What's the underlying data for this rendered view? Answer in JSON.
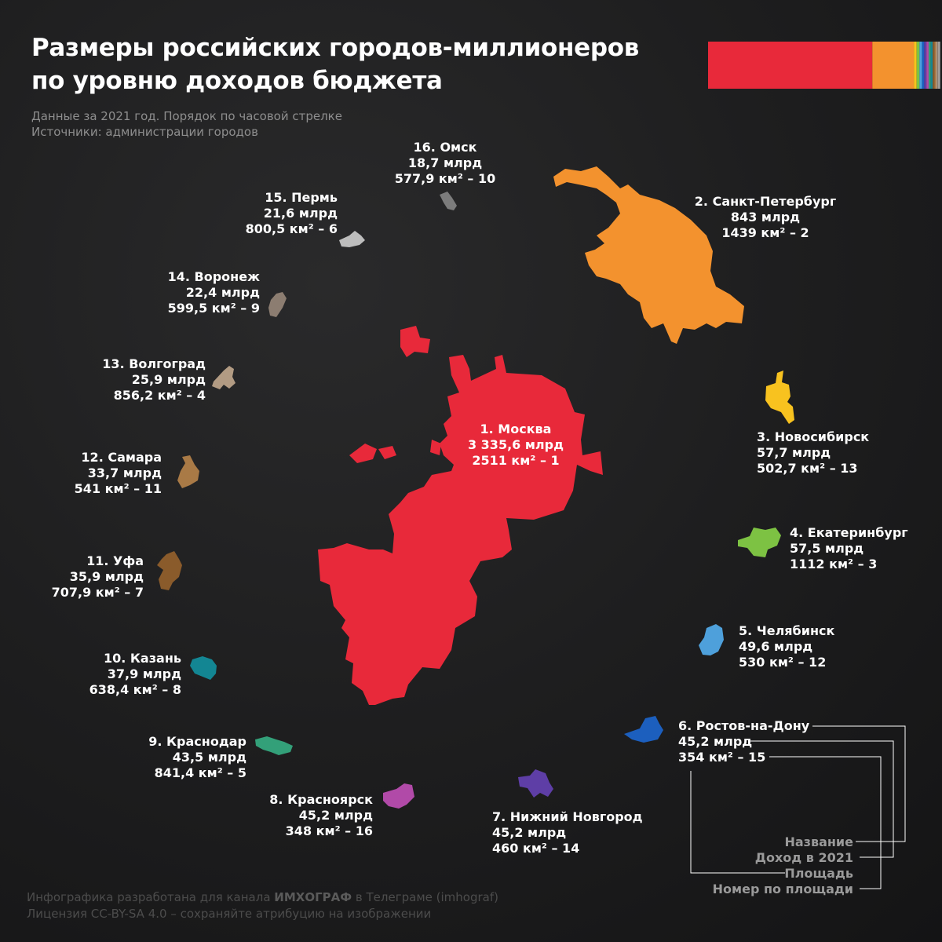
{
  "title": {
    "line1": "Размеры российских городов-миллионеров",
    "line2": "по уровню доходов бюджета"
  },
  "subtitle": {
    "line1": "Данные за 2021 год. Порядок по часовой стрелке",
    "line2": "Источники: администрации городов"
  },
  "colors": {
    "background": "#1e1e1f",
    "moscow": "#e8293a",
    "spb": "#f3922e",
    "novosibirsk": "#f8c21f",
    "ekaterinburg": "#7dc243",
    "chelyabinsk": "#4ea0db",
    "rostov": "#1c5fbe",
    "nnovgorod": "#5e3ea6",
    "krasnoyarsk": "#b14aa8",
    "krasnodar": "#33a079",
    "kazan": "#138693",
    "ufa": "#8a5b2b",
    "samara": "#a97a46",
    "volgograd": "#b29b83",
    "voronezh": "#8c7d71",
    "perm": "#bdbdbd",
    "omsk": "#7c7c7c"
  },
  "cities": [
    {
      "name": "1. Москва",
      "revenue": "3 335,6 млрд",
      "area": "2511 км² – 1",
      "revenue_bln": 3335.6,
      "area_km2": 2511,
      "area_rank": 1
    },
    {
      "name": "2. Санкт-Петербург",
      "revenue": "843 млрд",
      "area": "1439 км² – 2",
      "revenue_bln": 843,
      "area_km2": 1439,
      "area_rank": 2
    },
    {
      "name": "3. Новосибирск",
      "revenue": "57,7 млрд",
      "area": "502,7 км² – 13",
      "revenue_bln": 57.7,
      "area_km2": 502.7,
      "area_rank": 13
    },
    {
      "name": "4. Екатеринбург",
      "revenue": "57,5 млрд",
      "area": "1112 км² – 3",
      "revenue_bln": 57.5,
      "area_km2": 1112,
      "area_rank": 3
    },
    {
      "name": "5. Челябинск",
      "revenue": "49,6 млрд",
      "area": "530 км² – 12",
      "revenue_bln": 49.6,
      "area_km2": 530,
      "area_rank": 12
    },
    {
      "name": "6. Ростов-на-Дону",
      "revenue": "45,2 млрд",
      "area": "354 км² – 15",
      "revenue_bln": 45.2,
      "area_km2": 354,
      "area_rank": 15
    },
    {
      "name": "7. Нижний Новгород",
      "revenue": "45,2 млрд",
      "area": "460 км² – 14",
      "revenue_bln": 45.2,
      "area_km2": 460,
      "area_rank": 14
    },
    {
      "name": "8. Красноярск",
      "revenue": "45,2 млрд",
      "area": "348 км² – 16",
      "revenue_bln": 45.2,
      "area_km2": 348,
      "area_rank": 16
    },
    {
      "name": "9. Краснодар",
      "revenue": "43,5 млрд",
      "area": "841,4 км² – 5",
      "revenue_bln": 43.5,
      "area_km2": 841.4,
      "area_rank": 5
    },
    {
      "name": "10. Казань",
      "revenue": "37,9 млрд",
      "area": "638,4 км² – 8",
      "revenue_bln": 37.9,
      "area_km2": 638.4,
      "area_rank": 8
    },
    {
      "name": "11. Уфа",
      "revenue": "35,9 млрд",
      "area": "707,9 км² – 7",
      "revenue_bln": 35.9,
      "area_km2": 707.9,
      "area_rank": 7
    },
    {
      "name": "12. Самара",
      "revenue": "33,7 млрд",
      "area": "541 км² – 11",
      "revenue_bln": 33.7,
      "area_km2": 541,
      "area_rank": 11
    },
    {
      "name": "13. Волгоград",
      "revenue": "25,9 млрд",
      "area": "856,2 км² – 4",
      "revenue_bln": 25.9,
      "area_km2": 856.2,
      "area_rank": 4
    },
    {
      "name": "14. Воронеж",
      "revenue": "22,4 млрд",
      "area": "599,5 км² – 9",
      "revenue_bln": 22.4,
      "area_km2": 599.5,
      "area_rank": 9
    },
    {
      "name": "15. Пермь",
      "revenue": "21,6 млрд",
      "area": "800,5 км² – 6",
      "revenue_bln": 21.6,
      "area_km2": 800.5,
      "area_rank": 6
    },
    {
      "name": "16. Омск",
      "revenue": "18,7 млрд",
      "area": "577,9 км² – 10",
      "revenue_bln": 18.7,
      "area_km2": 577.9,
      "area_rank": 10
    }
  ],
  "legend": {
    "name": "Название",
    "revenue": "Доход в 2021",
    "area": "Площадь",
    "rank": "Номер по площади"
  },
  "credit": {
    "line1_prefix": "Инфографика разработана для канала ",
    "channel": "ИМХОГРАФ",
    "line1_suffix": " в Телеграме (imhograf)",
    "line2": "Лицензия CC-BY-SA 4.0 – сохраняйте атрибуцию на изображении"
  }
}
